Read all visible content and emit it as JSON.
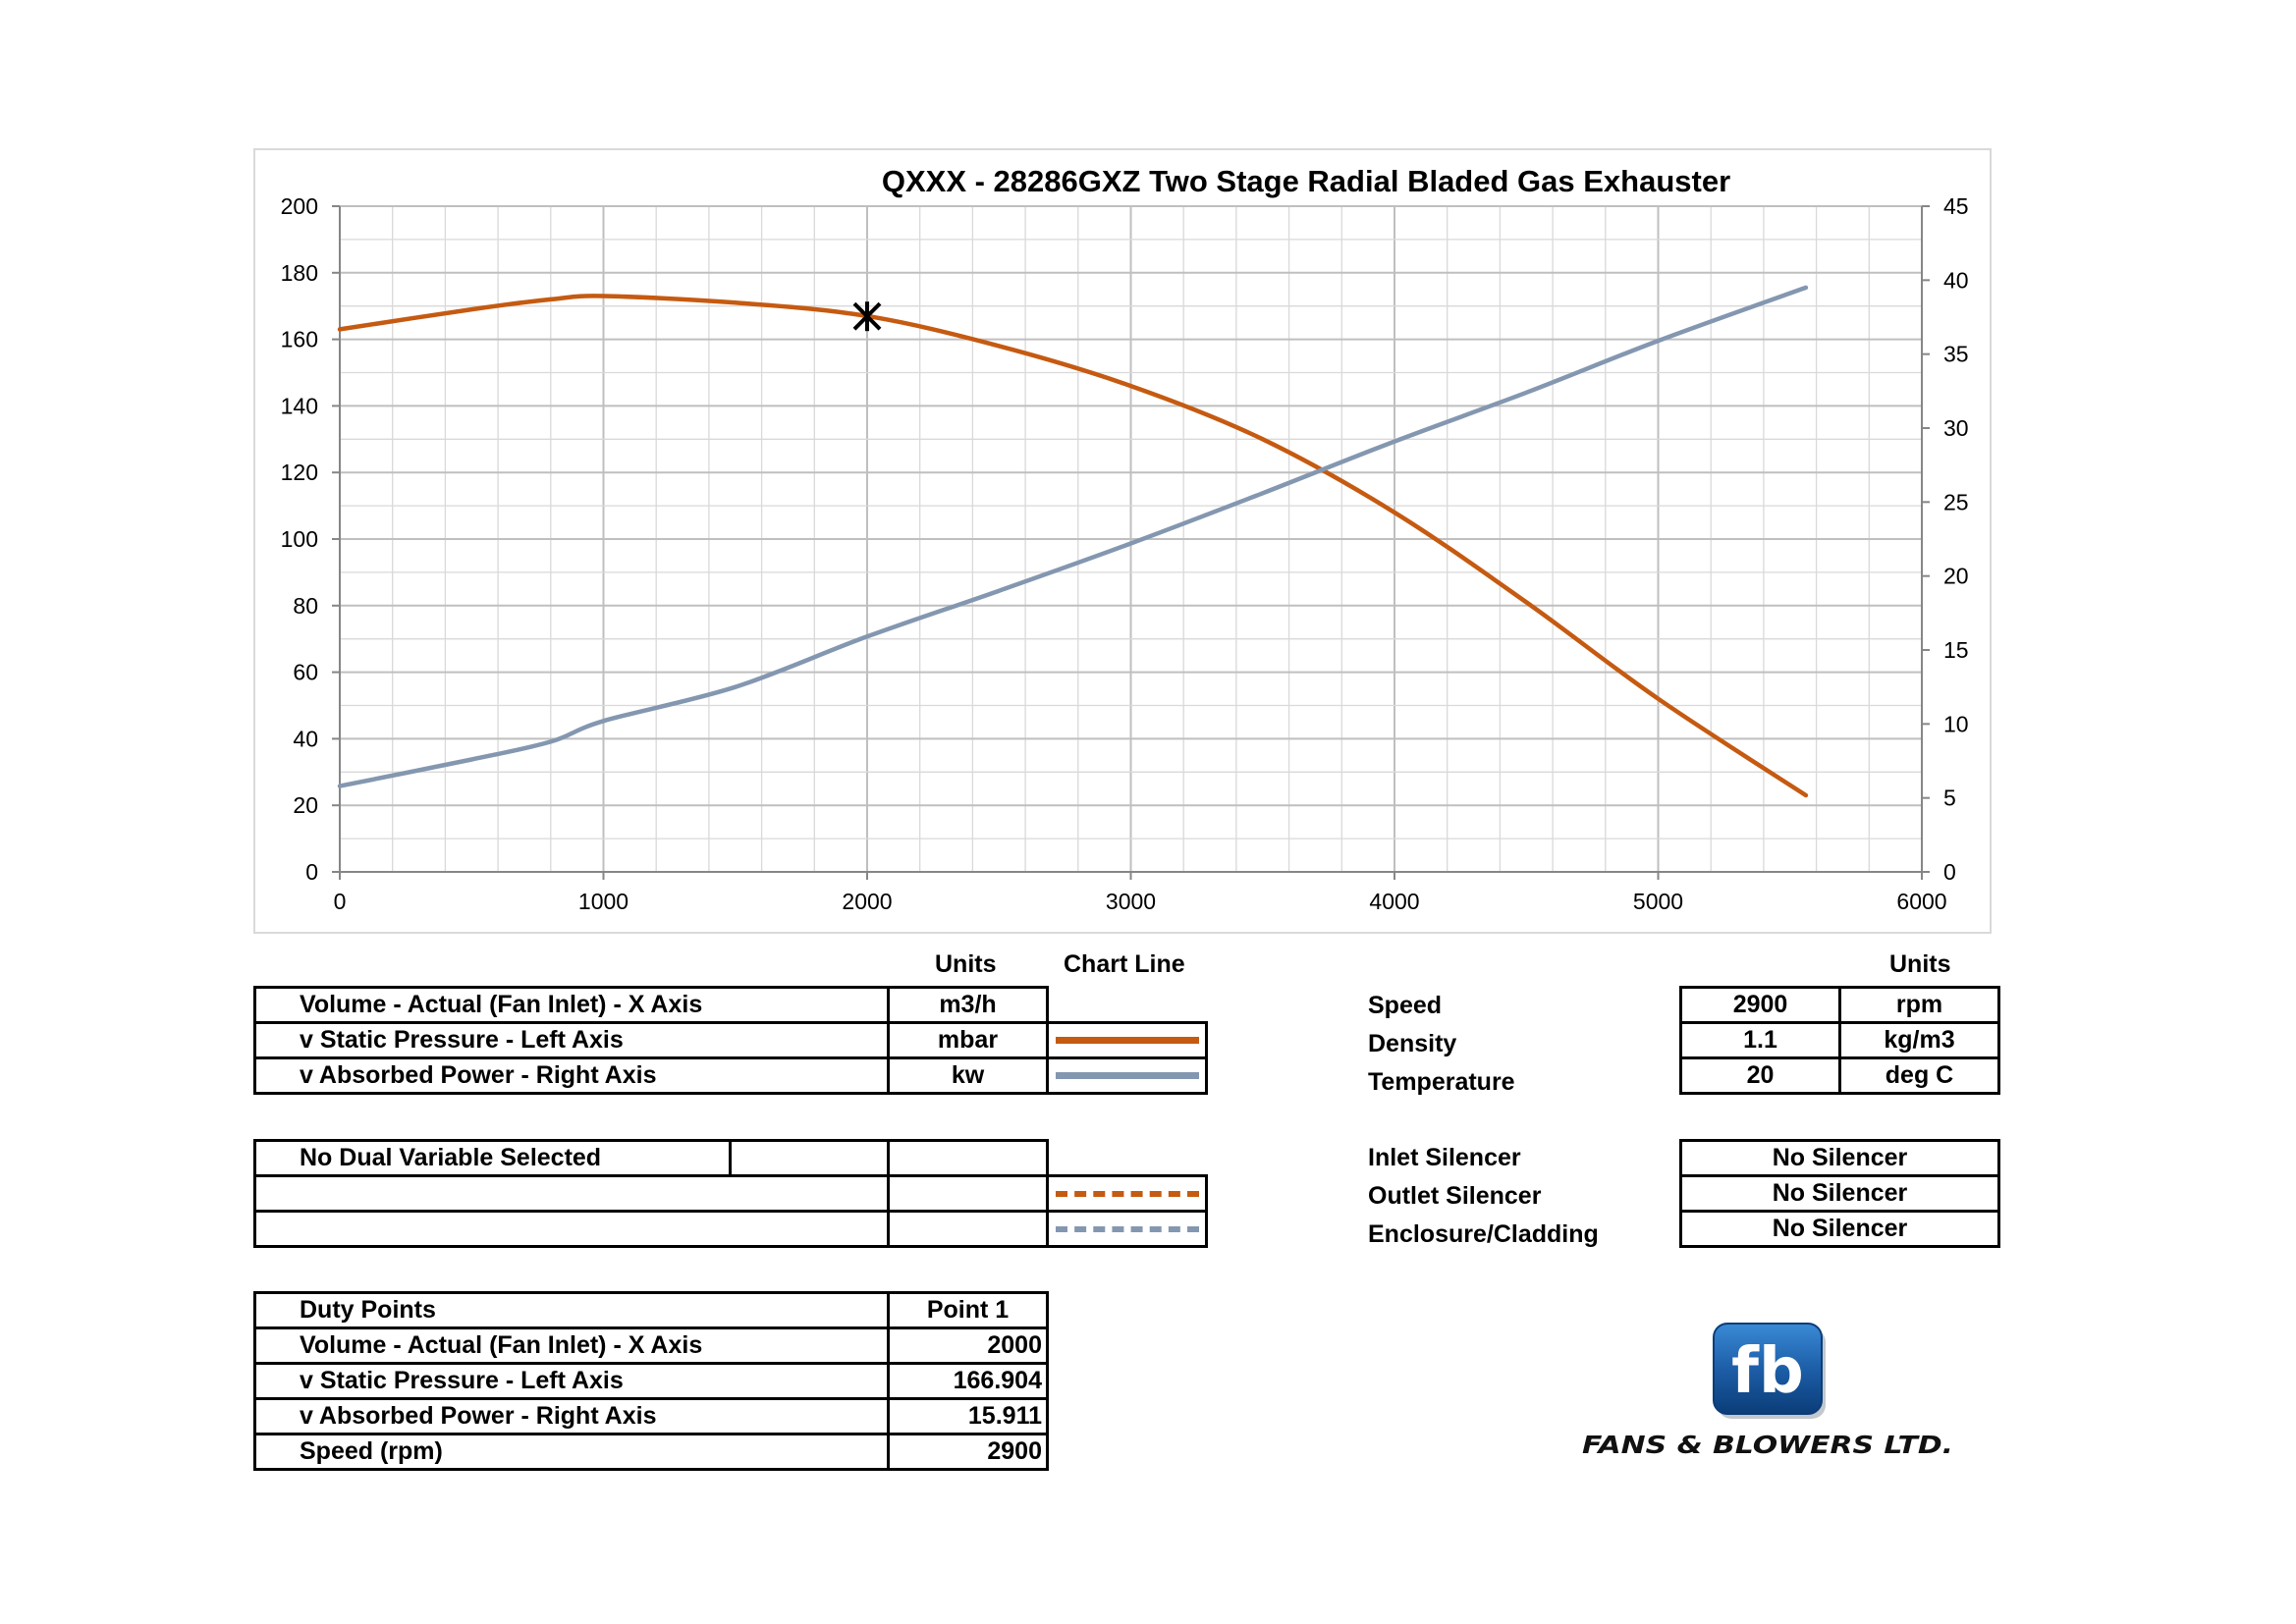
{
  "chart_data": {
    "type": "line",
    "title": "QXXX - 28286GXZ Two Stage Radial Bladed Gas Exhauster",
    "xlabel": "",
    "ylabel": "",
    "y2label": "",
    "xlim": [
      0,
      6000
    ],
    "ylim": [
      0,
      200
    ],
    "y2lim": [
      0,
      45
    ],
    "xticks": [
      "0",
      "1000",
      "2000",
      "3000",
      "4000",
      "5000",
      "6000"
    ],
    "yticks": [
      "0",
      "20",
      "40",
      "60",
      "80",
      "100",
      "120",
      "140",
      "160",
      "180",
      "200"
    ],
    "y2ticks": [
      "0",
      "5",
      "10",
      "15",
      "20",
      "25",
      "30",
      "35",
      "40",
      "45"
    ],
    "grid": true,
    "series": [
      {
        "axis": "left",
        "color": "#c55a11",
        "points": [
          [
            0,
            163
          ],
          [
            500,
            169
          ],
          [
            800,
            172
          ],
          [
            1000,
            173
          ],
          [
            1500,
            171
          ],
          [
            2000,
            167
          ],
          [
            2500,
            158
          ],
          [
            3000,
            146
          ],
          [
            3500,
            130
          ],
          [
            4000,
            108
          ],
          [
            4500,
            81
          ],
          [
            5000,
            52
          ],
          [
            5560,
            23
          ]
        ]
      },
      {
        "axis": "right",
        "color": "#8497b0",
        "points": [
          [
            0,
            5.8
          ],
          [
            500,
            7.6
          ],
          [
            800,
            8.8
          ],
          [
            1000,
            10.2
          ],
          [
            1500,
            12.5
          ],
          [
            2000,
            15.911
          ],
          [
            2500,
            19
          ],
          [
            3000,
            22.2
          ],
          [
            3500,
            25.6
          ],
          [
            4000,
            29.1
          ],
          [
            4500,
            32.4
          ],
          [
            5000,
            35.9
          ],
          [
            5560,
            39.5
          ]
        ]
      }
    ],
    "duty_point": {
      "x": 2000,
      "y": 166.904,
      "marker": "asterisk"
    }
  },
  "variables": {
    "units_header": "Units",
    "chartline_header": "Chart Line",
    "rows": [
      {
        "label": "Volume - Actual (Fan Inlet) - X Axis",
        "units": "m3/h"
      },
      {
        "label": "v Static Pressure - Left Axis",
        "units": "mbar",
        "line_color": "#c55a11"
      },
      {
        "label": "v Absorbed Power - Right Axis",
        "units": "kw",
        "line_color": "#8497b0"
      }
    ]
  },
  "dual": {
    "title": "No Dual Variable Selected",
    "line_colors": [
      "#c55a11",
      "#8497b0"
    ]
  },
  "duty": {
    "header": "Duty Points",
    "point_header": "Point 1",
    "rows": [
      {
        "label": "Volume - Actual (Fan Inlet) - X Axis",
        "value": "2000"
      },
      {
        "label": "v Static Pressure - Left Axis",
        "value": "166.904"
      },
      {
        "label": "v Absorbed Power - Right Axis",
        "value": "15.911"
      },
      {
        "label": "Speed (rpm)",
        "value": "2900"
      }
    ]
  },
  "conditions": {
    "units_header": "Units",
    "rows": [
      {
        "label": "Speed",
        "value": "2900",
        "unit": "rpm"
      },
      {
        "label": "Density",
        "value": "1.1",
        "unit": "kg/m3"
      },
      {
        "label": "Temperature",
        "value": "20",
        "unit": "deg C"
      }
    ]
  },
  "silencers": {
    "rows": [
      {
        "label": "Inlet Silencer",
        "value": "No Silencer"
      },
      {
        "label": "Outlet Silencer",
        "value": "No Silencer"
      },
      {
        "label": "Enclosure/Cladding",
        "value": "No Silencer"
      }
    ]
  },
  "brand": {
    "mark": "fb",
    "name": "FANS & BLOWERS LTD.",
    "colors": {
      "dark": "#0b3d78",
      "light": "#3a8ad6"
    }
  }
}
